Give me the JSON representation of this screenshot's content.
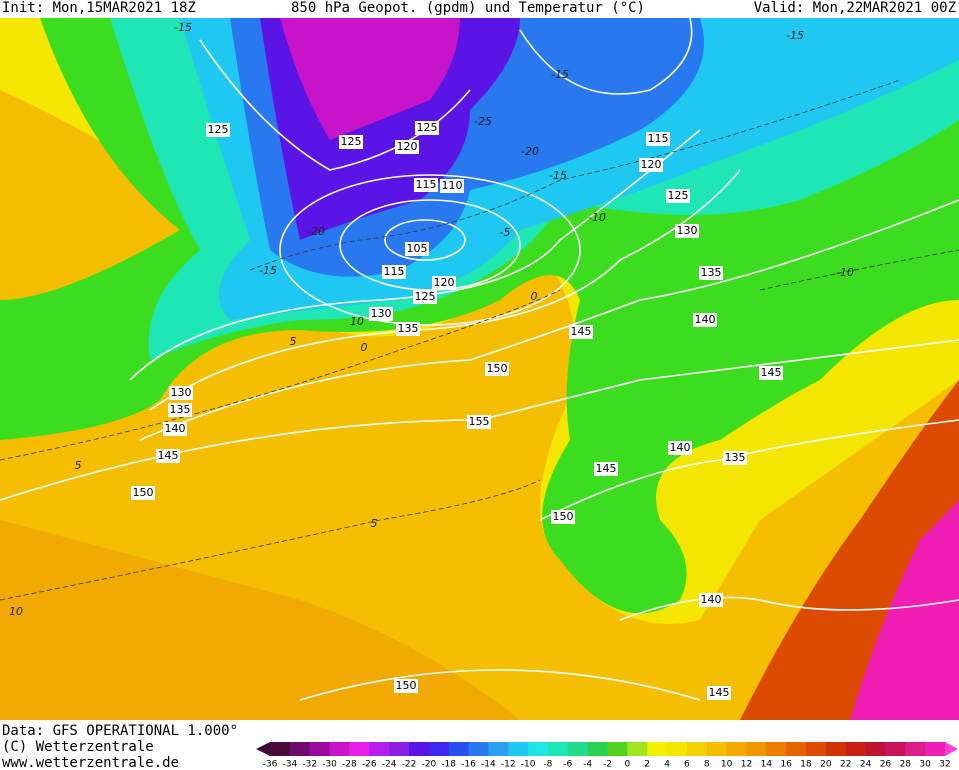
{
  "header": {
    "init": "Init: Mon,15MAR2021 18Z",
    "title": "850 hPa Geopot. (gpdm) und Temperatur (°C)",
    "valid": "Valid: Mon,22MAR2021 00Z"
  },
  "footer": {
    "data": "Data: GFS OPERATIONAL 1.000°",
    "copyright": "(C) Wetterzentrale",
    "url": "www.wetterzentrale.de"
  },
  "geopotential_labels": [
    "125",
    "125",
    "120",
    "125",
    "115",
    "110",
    "105",
    "115",
    "120",
    "125",
    "130",
    "135",
    "145",
    "150",
    "155",
    "130",
    "135",
    "140",
    "145",
    "150",
    "115",
    "120",
    "125",
    "130",
    "135",
    "140",
    "145",
    "140",
    "135",
    "145",
    "150",
    "140",
    "145",
    "150"
  ],
  "temperature_labels": [
    "-15",
    "-15",
    "-15",
    "-25",
    "-20",
    "-15",
    "-10",
    "-5",
    "-15",
    "-20",
    "-10",
    "10",
    "5",
    "0",
    "0",
    "5",
    "5",
    "10"
  ],
  "legend": {
    "ticks": [
      -36,
      -34,
      -32,
      -30,
      -28,
      -26,
      -24,
      -22,
      -20,
      -18,
      -16,
      -14,
      -12,
      -10,
      -8,
      -6,
      -4,
      -2,
      0,
      2,
      4,
      6,
      8,
      10,
      12,
      14,
      16,
      18,
      20,
      22,
      24,
      26,
      28,
      30,
      32
    ],
    "colors": [
      "#4b0a3c",
      "#6e0a6e",
      "#9a0aa0",
      "#c814c8",
      "#e61ee6",
      "#b41ef0",
      "#8c1ee6",
      "#5a14e6",
      "#3c28f0",
      "#2850f0",
      "#2878f0",
      "#28a0f0",
      "#1ec8f0",
      "#1ee6e6",
      "#1ee6b4",
      "#1edc8c",
      "#28d250",
      "#50d21e",
      "#a0e61e",
      "#f0f000",
      "#f5e600",
      "#f5d200",
      "#f5be00",
      "#f0aa00",
      "#f09600",
      "#eb7d00",
      "#e66400",
      "#dc4b00",
      "#d23200",
      "#c81e14",
      "#be1432",
      "#c8145a",
      "#dc1e8c",
      "#f01eb4"
    ],
    "under_color": "#3c0a32",
    "over_color": "#ff3cdc"
  }
}
